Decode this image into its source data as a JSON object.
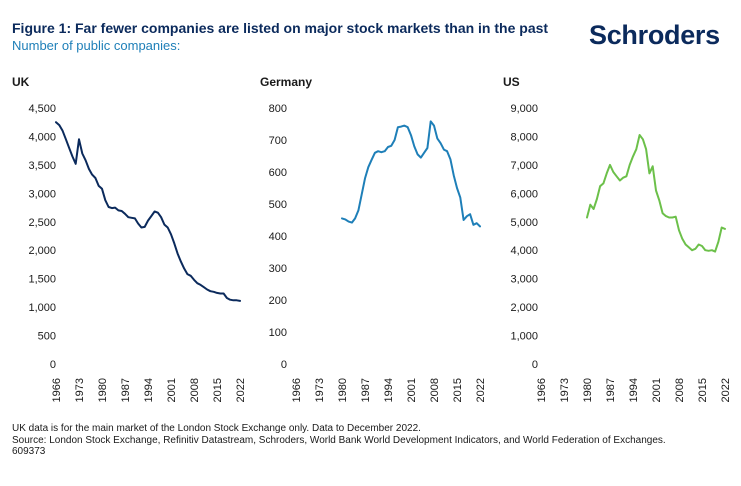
{
  "header": {
    "title": "Figure 1: Far fewer companies are listed on major stock markets than in the past",
    "subtitle": "Number of public companies:",
    "logo": "Schroders"
  },
  "footer": {
    "note": "UK data is for the main market of the London Stock Exchange only. Data to December 2022.",
    "source": "Source: London Stock Exchange, Refinitiv Datastream, Schroders, World Bank World Development Indicators, and World Federation of Exchanges.",
    "code": "609373"
  },
  "chart_data": [
    {
      "type": "line",
      "title": "UK",
      "xlim": [
        1966,
        2022
      ],
      "x_ticks": [
        1966,
        1973,
        1980,
        1987,
        1994,
        2001,
        2008,
        2015,
        2022
      ],
      "ylim": [
        0,
        4500
      ],
      "y_ticks": [
        0,
        500,
        1000,
        1500,
        2000,
        2500,
        3000,
        3500,
        4000,
        4500
      ],
      "y_tick_labels": [
        "0",
        "500",
        "1,000",
        "1,500",
        "2,000",
        "2,500",
        "3,000",
        "3,500",
        "4,000",
        "4,500"
      ],
      "color": "#0b2a5c",
      "x": [
        1966,
        1967,
        1968,
        1969,
        1970,
        1971,
        1972,
        1973,
        1974,
        1975,
        1976,
        1977,
        1978,
        1979,
        1980,
        1981,
        1982,
        1983,
        1984,
        1985,
        1986,
        1987,
        1988,
        1989,
        1990,
        1991,
        1992,
        1993,
        1994,
        1995,
        1996,
        1997,
        1998,
        1999,
        2000,
        2001,
        2002,
        2003,
        2004,
        2005,
        2006,
        2007,
        2008,
        2009,
        2010,
        2011,
        2012,
        2013,
        2014,
        2015,
        2016,
        2017,
        2018,
        2019,
        2020,
        2021,
        2022
      ],
      "y": [
        4250,
        4200,
        4100,
        3950,
        3800,
        3650,
        3520,
        3950,
        3700,
        3580,
        3430,
        3330,
        3270,
        3130,
        3080,
        2880,
        2760,
        2740,
        2750,
        2700,
        2690,
        2640,
        2580,
        2570,
        2560,
        2470,
        2400,
        2410,
        2520,
        2600,
        2680,
        2660,
        2580,
        2450,
        2400,
        2280,
        2120,
        1940,
        1800,
        1680,
        1580,
        1550,
        1480,
        1420,
        1390,
        1350,
        1310,
        1280,
        1270,
        1250,
        1240,
        1240,
        1160,
        1130,
        1120,
        1120,
        1110
      ]
    },
    {
      "type": "line",
      "title": "Germany",
      "xlim": [
        1966,
        2022
      ],
      "x_ticks": [
        1966,
        1973,
        1980,
        1987,
        1994,
        2001,
        2008,
        2015,
        2022
      ],
      "ylim": [
        0,
        800
      ],
      "y_ticks": [
        0,
        100,
        200,
        300,
        400,
        500,
        600,
        700,
        800
      ],
      "y_tick_labels": [
        "0",
        "100",
        "200",
        "300",
        "400",
        "500",
        "600",
        "700",
        "800"
      ],
      "color": "#1e7fb8",
      "x": [
        1980,
        1981,
        1982,
        1983,
        1984,
        1985,
        1986,
        1987,
        1988,
        1989,
        1990,
        1991,
        1992,
        1993,
        1994,
        1995,
        1996,
        1997,
        1998,
        1999,
        2000,
        2001,
        2002,
        2003,
        2004,
        2005,
        2006,
        2007,
        2008,
        2009,
        2010,
        2011,
        2012,
        2013,
        2014,
        2015,
        2016,
        2017,
        2018,
        2019,
        2020,
        2021,
        2022
      ],
      "y": [
        455,
        452,
        445,
        442,
        455,
        480,
        530,
        580,
        615,
        638,
        660,
        665,
        662,
        665,
        678,
        682,
        700,
        740,
        742,
        745,
        740,
        715,
        680,
        655,
        645,
        660,
        675,
        758,
        745,
        705,
        690,
        670,
        665,
        640,
        590,
        550,
        520,
        450,
        462,
        468,
        435,
        440,
        430
      ]
    },
    {
      "type": "line",
      "title": "US",
      "xlim": [
        1966,
        2022
      ],
      "x_ticks": [
        1966,
        1973,
        1980,
        1987,
        1994,
        2001,
        2008,
        2015,
        2022
      ],
      "ylim": [
        0,
        9000
      ],
      "y_ticks": [
        0,
        1000,
        2000,
        3000,
        4000,
        5000,
        6000,
        7000,
        8000,
        9000
      ],
      "y_tick_labels": [
        "0",
        "1,000",
        "2,000",
        "3,000",
        "4,000",
        "5,000",
        "6,000",
        "7,000",
        "8,000",
        "9,000"
      ],
      "color": "#6cc04a",
      "x": [
        1980,
        1981,
        1982,
        1983,
        1984,
        1985,
        1986,
        1987,
        1988,
        1989,
        1990,
        1991,
        1992,
        1993,
        1994,
        1995,
        1996,
        1997,
        1998,
        1999,
        2000,
        2001,
        2002,
        2003,
        2004,
        2005,
        2006,
        2007,
        2008,
        2009,
        2010,
        2011,
        2012,
        2013,
        2014,
        2015,
        2016,
        2017,
        2018,
        2019,
        2020,
        2021,
        2022
      ],
      "y": [
        5150,
        5600,
        5450,
        5800,
        6250,
        6350,
        6700,
        7000,
        6750,
        6600,
        6450,
        6550,
        6600,
        7000,
        7300,
        7550,
        8050,
        7900,
        7550,
        6700,
        6950,
        6100,
        5750,
        5300,
        5200,
        5150,
        5150,
        5180,
        4700,
        4400,
        4200,
        4100,
        4000,
        4050,
        4200,
        4150,
        4000,
        3980,
        4000,
        3950,
        4300,
        4800,
        4750
      ]
    }
  ]
}
